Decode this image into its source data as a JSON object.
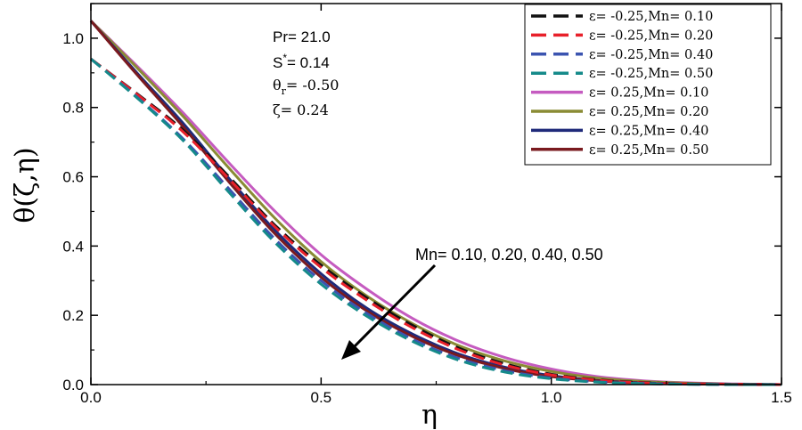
{
  "chart_data": {
    "type": "line",
    "xlabel": "η",
    "ylabel": "θ(ζ,η)",
    "xlim": [
      0,
      1.5
    ],
    "ylim": [
      0,
      1.1
    ],
    "x_ticks": [
      "0.0",
      "0.5",
      "1.0",
      "1.5"
    ],
    "y_ticks": [
      "0.0",
      "0.2",
      "0.4",
      "0.6",
      "0.8",
      "1.0"
    ],
    "parameters": {
      "pr": "Pr= 21.0",
      "s_base": "S",
      "s_sup": "*",
      "s_value": "= 0.14",
      "theta_base": "θ",
      "theta_sub": "r",
      "theta_value": "= -0.50",
      "zeta": "ζ= 0.24"
    },
    "annotation": "Mn= 0.10, 0.20, 0.40, 0.50",
    "series": [
      {
        "name": "ε= -0.25,Mn= 0.10",
        "color": "#111111",
        "dash": "dashed",
        "x": [
          0,
          0.1,
          0.2,
          0.3,
          0.4,
          0.5,
          0.6,
          0.7,
          0.8,
          0.9,
          1.0,
          1.1,
          1.2,
          1.3,
          1.4,
          1.5
        ],
        "y": [
          0.94,
          0.84,
          0.735,
          0.6,
          0.46,
          0.345,
          0.25,
          0.17,
          0.105,
          0.06,
          0.03,
          0.014,
          0.006,
          0.002,
          0.001,
          0.0
        ]
      },
      {
        "name": "ε= -0.25,Mn= 0.20",
        "color": "#e8202a",
        "dash": "dashed",
        "x": [
          0,
          0.1,
          0.2,
          0.3,
          0.4,
          0.5,
          0.6,
          0.7,
          0.8,
          0.9,
          1.0,
          1.1,
          1.2,
          1.3,
          1.4,
          1.5
        ],
        "y": [
          0.94,
          0.838,
          0.73,
          0.594,
          0.455,
          0.338,
          0.243,
          0.163,
          0.1,
          0.056,
          0.028,
          0.013,
          0.005,
          0.002,
          0.001,
          0.0
        ]
      },
      {
        "name": "ε= -0.25,Mn= 0.40",
        "color": "#3b54b0",
        "dash": "dashed",
        "x": [
          0,
          0.1,
          0.2,
          0.3,
          0.4,
          0.5,
          0.6,
          0.7,
          0.8,
          0.9,
          1.0,
          1.1,
          1.2,
          1.3,
          1.4,
          1.5
        ],
        "y": [
          0.94,
          0.83,
          0.71,
          0.565,
          0.42,
          0.3,
          0.205,
          0.13,
          0.075,
          0.04,
          0.019,
          0.008,
          0.003,
          0.001,
          0.0,
          0.0
        ]
      },
      {
        "name": "ε= -0.25,Mn= 0.50",
        "color": "#158a8a",
        "dash": "dashed",
        "x": [
          0,
          0.1,
          0.2,
          0.3,
          0.4,
          0.5,
          0.6,
          0.7,
          0.8,
          0.9,
          1.0,
          1.1,
          1.2,
          1.3,
          1.4,
          1.5
        ],
        "y": [
          0.94,
          0.828,
          0.705,
          0.555,
          0.41,
          0.29,
          0.197,
          0.124,
          0.07,
          0.036,
          0.017,
          0.007,
          0.003,
          0.001,
          0.0,
          0.0
        ]
      },
      {
        "name": "ε= 0.25,Mn= 0.10",
        "color": "#c55bc0",
        "dash": "solid",
        "x": [
          0,
          0.1,
          0.2,
          0.3,
          0.4,
          0.5,
          0.6,
          0.7,
          0.8,
          0.9,
          1.0,
          1.1,
          1.2,
          1.3,
          1.4,
          1.5
        ],
        "y": [
          1.05,
          0.92,
          0.785,
          0.64,
          0.5,
          0.375,
          0.275,
          0.19,
          0.125,
          0.078,
          0.045,
          0.023,
          0.011,
          0.005,
          0.002,
          0.0
        ]
      },
      {
        "name": "ε= 0.25,Mn= 0.20",
        "color": "#8a8b34",
        "dash": "solid",
        "x": [
          0,
          0.1,
          0.2,
          0.3,
          0.4,
          0.5,
          0.6,
          0.7,
          0.8,
          0.9,
          1.0,
          1.1,
          1.2,
          1.3,
          1.4,
          1.5
        ],
        "y": [
          1.05,
          0.915,
          0.775,
          0.625,
          0.48,
          0.355,
          0.255,
          0.175,
          0.112,
          0.068,
          0.038,
          0.019,
          0.009,
          0.004,
          0.001,
          0.0
        ]
      },
      {
        "name": "ε= 0.25,Mn= 0.40",
        "color": "#1f2a7a",
        "dash": "solid",
        "x": [
          0,
          0.1,
          0.2,
          0.3,
          0.4,
          0.5,
          0.6,
          0.7,
          0.8,
          0.9,
          1.0,
          1.1,
          1.2,
          1.3,
          1.4,
          1.5
        ],
        "y": [
          1.05,
          0.9,
          0.755,
          0.595,
          0.445,
          0.32,
          0.22,
          0.145,
          0.088,
          0.05,
          0.026,
          0.012,
          0.005,
          0.002,
          0.001,
          0.0
        ]
      },
      {
        "name": "ε= 0.25,Mn= 0.50",
        "color": "#7a1a1f",
        "dash": "solid",
        "x": [
          0,
          0.1,
          0.2,
          0.3,
          0.4,
          0.5,
          0.6,
          0.7,
          0.8,
          0.9,
          1.0,
          1.1,
          1.2,
          1.3,
          1.4,
          1.5
        ],
        "y": [
          1.05,
          0.895,
          0.745,
          0.585,
          0.435,
          0.31,
          0.212,
          0.138,
          0.083,
          0.046,
          0.023,
          0.011,
          0.004,
          0.002,
          0.001,
          0.0
        ]
      }
    ]
  }
}
